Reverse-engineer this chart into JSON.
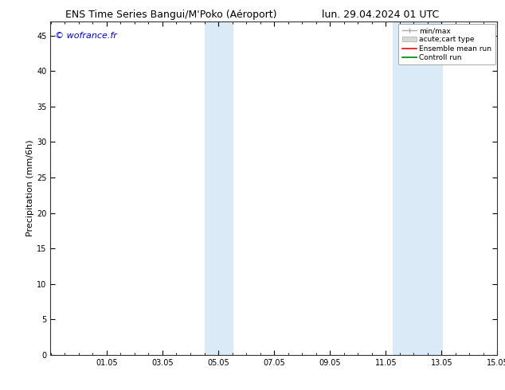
{
  "title_left": "ENS Time Series Bangui/M'Poko (Aéroport)",
  "title_right": "lun. 29.04.2024 01 UTC",
  "ylabel": "Precipitation (mm/6h)",
  "watermark": "© wofrance.fr",
  "watermark_color": "#0000cc",
  "xlim": [
    -0.96,
    15.05
  ],
  "ylim": [
    0,
    47
  ],
  "yticks": [
    0,
    5,
    10,
    15,
    20,
    25,
    30,
    35,
    40,
    45
  ],
  "xtick_labels": [
    "01.05",
    "03.05",
    "05.05",
    "07.05",
    "09.05",
    "11.05",
    "13.05",
    "15.05"
  ],
  "xtick_positions": [
    1.05,
    3.05,
    5.05,
    7.05,
    9.05,
    11.05,
    13.05,
    15.05
  ],
  "shaded_regions": [
    {
      "xstart": 4.55,
      "xend": 5.6,
      "color": "#dbeaf7"
    },
    {
      "xstart": 11.3,
      "xend": 13.1,
      "color": "#dbeaf7"
    }
  ],
  "legend_entries": [
    {
      "label": "min/max"
    },
    {
      "label": "acute;cart type"
    },
    {
      "label": "Ensemble mean run"
    },
    {
      "label": "Controll run"
    }
  ],
  "background_color": "#ffffff",
  "tick_label_size": 7,
  "axis_label_size": 8,
  "title_fontsize": 9,
  "watermark_fontsize": 8
}
